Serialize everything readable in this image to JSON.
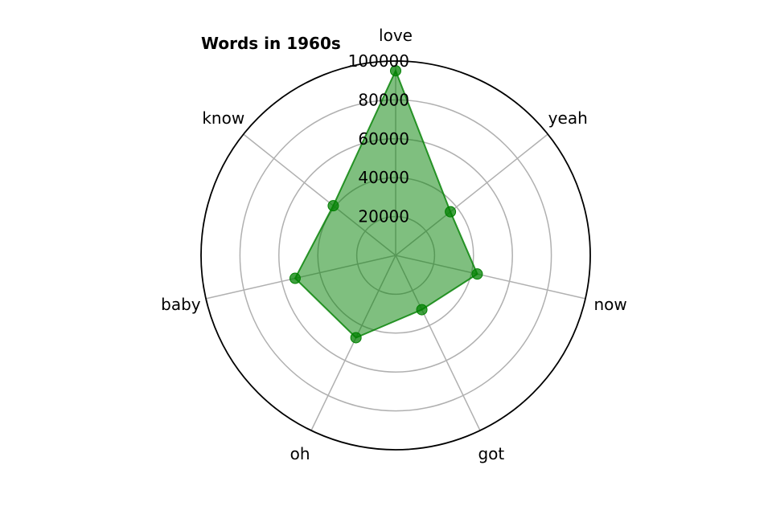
{
  "chart_data": {
    "type": "radar",
    "title": "Words in 1960s",
    "categories": [
      "love",
      "yeah",
      "now",
      "got",
      "oh",
      "baby",
      "know"
    ],
    "series": [
      {
        "values": [
          95000,
          36000,
          43000,
          31000,
          47000,
          53000,
          41000
        ],
        "color": "#008000"
      }
    ],
    "r_ticks": [
      20000,
      40000,
      60000,
      80000,
      100000
    ],
    "r_tick_labels": [
      "20000",
      "40000",
      "60000",
      "80000",
      "100000"
    ],
    "rlim": [
      0,
      100000
    ],
    "grid": true
  }
}
